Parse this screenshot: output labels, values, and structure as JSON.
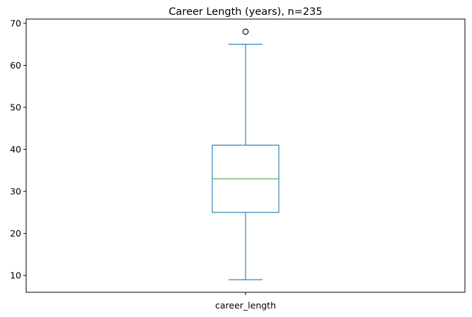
{
  "chart_data": {
    "type": "box",
    "title": "Career Length (years), n=235",
    "xlabel": "",
    "ylabel": "",
    "categories": [
      "career_length"
    ],
    "boxes": [
      {
        "name": "career_length",
        "whisker_low": 9,
        "q1": 25,
        "median": 33,
        "q3": 41,
        "whisker_high": 65,
        "outliers": [
          68
        ]
      }
    ],
    "ylim": [
      6,
      71
    ],
    "yticks": [
      10,
      20,
      30,
      40,
      50,
      60,
      70
    ],
    "grid": false,
    "legend": "none",
    "colors": {
      "box": "#1f77b4",
      "median": "#2ca02c",
      "outlier": "#000000",
      "axes": "#000000"
    }
  }
}
